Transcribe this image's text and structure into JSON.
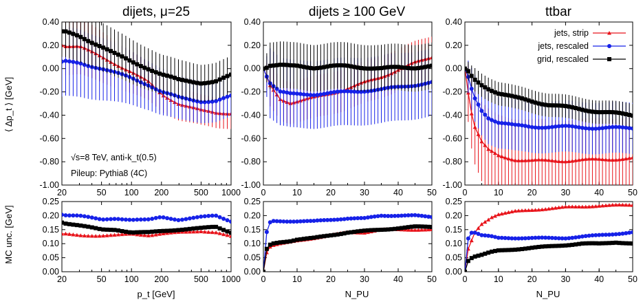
{
  "chart_data": [
    {
      "type": "line",
      "title": "dijets, μ=25",
      "xlabel": "",
      "ylabel": "⟨ Δp_t ⟩ [GeV]",
      "xscale": "log",
      "xlim": [
        20,
        1000
      ],
      "ylim": [
        -1.0,
        0.4
      ],
      "x_ticks": [
        "20",
        "50",
        "100",
        "200",
        "500",
        "1000"
      ],
      "y_ticks": [
        "0.40",
        "0.20",
        "0.00",
        "-0.20",
        "-0.40",
        "-0.60",
        "-0.80",
        "-1.00"
      ],
      "annotations": [
        "√s=8 TeV, anti-k_t(0.5)",
        "Pileup: Pythia8 (4C)"
      ],
      "series": [
        {
          "name": "jets, strip",
          "color": "#e8131a",
          "marker": "triangle",
          "error_bars": true,
          "x": [
            20,
            30,
            50,
            70,
            100,
            150,
            200,
            300,
            500,
            700,
            1000
          ],
          "y": [
            0.2,
            0.19,
            0.1,
            0.04,
            -0.03,
            -0.12,
            -0.22,
            -0.3,
            -0.36,
            -0.38,
            -0.38
          ],
          "err": [
            0.25,
            0.24,
            0.22,
            0.2,
            0.18,
            0.16,
            0.15,
            0.14,
            0.13,
            0.13,
            0.13
          ]
        },
        {
          "name": "jets, rescaled",
          "color": "#1621e8",
          "marker": "circle",
          "error_bars": true,
          "x": [
            20,
            30,
            50,
            70,
            100,
            150,
            200,
            300,
            500,
            700,
            1000
          ],
          "y": [
            0.06,
            0.05,
            0.0,
            -0.04,
            -0.08,
            -0.14,
            -0.2,
            -0.25,
            -0.28,
            -0.28,
            -0.24
          ],
          "err": [
            0.3,
            0.29,
            0.27,
            0.25,
            0.23,
            0.21,
            0.2,
            0.19,
            0.18,
            0.18,
            0.18
          ]
        },
        {
          "name": "grid, rescaled",
          "color": "#000000",
          "marker": "square",
          "error_bars": true,
          "x": [
            20,
            30,
            50,
            70,
            100,
            150,
            200,
            300,
            500,
            700,
            1000
          ],
          "y": [
            0.32,
            0.28,
            0.19,
            0.12,
            0.06,
            0.0,
            -0.05,
            -0.1,
            -0.12,
            -0.11,
            -0.06
          ],
          "err": [
            0.22,
            0.22,
            0.21,
            0.2,
            0.19,
            0.18,
            0.17,
            0.17,
            0.16,
            0.16,
            0.16
          ]
        }
      ]
    },
    {
      "type": "line",
      "title": "dijets ≥ 100 GeV",
      "xlabel": "",
      "ylabel": "",
      "xlim": [
        0,
        50
      ],
      "ylim": [
        -1.0,
        0.4
      ],
      "x_ticks": [
        "0",
        "10",
        "20",
        "30",
        "40",
        "50"
      ],
      "y_ticks": [
        "0.40",
        "0.20",
        "0.00",
        "-0.20",
        "-0.40",
        "-0.60",
        "-0.80",
        "-1.00"
      ],
      "series": [
        {
          "name": "jets, strip",
          "color": "#e8131a",
          "marker": "triangle",
          "error_bars": true,
          "x": [
            0,
            2,
            5,
            8,
            10,
            15,
            20,
            25,
            30,
            35,
            40,
            45,
            50
          ],
          "y": [
            0.0,
            -0.15,
            -0.26,
            -0.29,
            -0.28,
            -0.25,
            -0.21,
            -0.17,
            -0.12,
            -0.07,
            -0.01,
            0.05,
            0.1
          ],
          "err": [
            0.05,
            0.18,
            0.18,
            0.18,
            0.18,
            0.18,
            0.18,
            0.18,
            0.18,
            0.18,
            0.18,
            0.18,
            0.18
          ]
        },
        {
          "name": "jets, rescaled",
          "color": "#1621e8",
          "marker": "circle",
          "error_bars": true,
          "x": [
            0,
            2,
            5,
            8,
            10,
            15,
            20,
            25,
            30,
            35,
            40,
            45,
            50
          ],
          "y": [
            0.0,
            -0.12,
            -0.2,
            -0.22,
            -0.22,
            -0.22,
            -0.21,
            -0.2,
            -0.19,
            -0.18,
            -0.16,
            -0.14,
            -0.12
          ],
          "err": [
            0.05,
            0.3,
            0.29,
            0.29,
            0.29,
            0.29,
            0.29,
            0.29,
            0.29,
            0.29,
            0.29,
            0.29,
            0.29
          ]
        },
        {
          "name": "grid, rescaled",
          "color": "#000000",
          "marker": "square",
          "error_bars": true,
          "x": [
            0,
            2,
            5,
            8,
            10,
            15,
            20,
            25,
            30,
            35,
            40,
            45,
            50
          ],
          "y": [
            0.0,
            0.03,
            0.03,
            0.02,
            0.02,
            0.01,
            0.02,
            0.02,
            0.01,
            0.0,
            0.01,
            0.01,
            0.02
          ],
          "err": [
            0.05,
            0.2,
            0.2,
            0.2,
            0.2,
            0.2,
            0.2,
            0.2,
            0.2,
            0.2,
            0.2,
            0.2,
            0.2
          ]
        }
      ]
    },
    {
      "type": "line",
      "title": "ttbar",
      "xlabel": "",
      "ylabel": "",
      "xlim": [
        0,
        50
      ],
      "ylim": [
        -1.0,
        0.4
      ],
      "x_ticks": [
        "0",
        "10",
        "20",
        "30",
        "40",
        "50"
      ],
      "y_ticks": [
        "0.40",
        "0.20",
        "0.00",
        "-0.20",
        "-0.40",
        "-0.60",
        "-0.80",
        "-1.00"
      ],
      "legend": "top-right",
      "series": [
        {
          "name": "jets, strip",
          "color": "#e8131a",
          "marker": "triangle",
          "error_bars": true,
          "x": [
            0,
            1,
            2,
            3,
            5,
            7,
            10,
            15,
            20,
            25,
            30,
            40,
            50
          ],
          "y": [
            0.0,
            -0.2,
            -0.38,
            -0.5,
            -0.63,
            -0.7,
            -0.75,
            -0.78,
            -0.79,
            -0.79,
            -0.79,
            -0.78,
            -0.77
          ],
          "err": [
            0.05,
            0.25,
            0.3,
            0.32,
            0.34,
            0.35,
            0.35,
            0.35,
            0.35,
            0.35,
            0.35,
            0.35,
            0.35
          ]
        },
        {
          "name": "jets, rescaled",
          "color": "#1621e8",
          "marker": "circle",
          "error_bars": true,
          "x": [
            0,
            1,
            2,
            3,
            5,
            7,
            10,
            15,
            20,
            25,
            30,
            40,
            50
          ],
          "y": [
            0.0,
            -0.08,
            -0.18,
            -0.26,
            -0.36,
            -0.42,
            -0.46,
            -0.49,
            -0.5,
            -0.5,
            -0.5,
            -0.51,
            -0.51
          ],
          "err": [
            0.05,
            0.14,
            0.18,
            0.2,
            0.21,
            0.22,
            0.22,
            0.22,
            0.22,
            0.22,
            0.22,
            0.22,
            0.22
          ]
        },
        {
          "name": "grid, rescaled",
          "color": "#000000",
          "marker": "square",
          "error_bars": true,
          "x": [
            0,
            1,
            2,
            3,
            5,
            7,
            10,
            15,
            20,
            25,
            30,
            40,
            50
          ],
          "y": [
            0.0,
            -0.03,
            -0.07,
            -0.1,
            -0.14,
            -0.17,
            -0.21,
            -0.25,
            -0.28,
            -0.31,
            -0.33,
            -0.37,
            -0.4
          ],
          "err": [
            0.05,
            0.08,
            0.09,
            0.1,
            0.1,
            0.1,
            0.1,
            0.1,
            0.1,
            0.1,
            0.1,
            0.1,
            0.1
          ]
        }
      ]
    },
    {
      "type": "line",
      "title": "",
      "xlabel": "p_t [GeV]",
      "ylabel": "MC unc. [GeV]",
      "xscale": "log",
      "xlim": [
        20,
        1000
      ],
      "ylim": [
        0.0,
        0.25
      ],
      "x_ticks": [
        "20",
        "50",
        "100",
        "200",
        "500",
        "1000"
      ],
      "y_ticks": [
        "0.25",
        "0.20",
        "0.15",
        "0.10",
        "0.05",
        "0.00"
      ],
      "series": [
        {
          "name": "jets, strip",
          "color": "#e8131a",
          "marker": "triangle",
          "x": [
            20,
            30,
            50,
            70,
            100,
            150,
            200,
            300,
            500,
            700,
            1000
          ],
          "y": [
            0.135,
            0.13,
            0.128,
            0.13,
            0.135,
            0.13,
            0.135,
            0.14,
            0.145,
            0.14,
            0.125
          ]
        },
        {
          "name": "jets, rescaled",
          "color": "#1621e8",
          "marker": "circle",
          "x": [
            20,
            30,
            50,
            70,
            100,
            150,
            200,
            300,
            500,
            700,
            1000
          ],
          "y": [
            0.203,
            0.2,
            0.185,
            0.19,
            0.185,
            0.185,
            0.195,
            0.185,
            0.195,
            0.2,
            0.18
          ]
        },
        {
          "name": "grid, rescaled",
          "color": "#000000",
          "marker": "square",
          "x": [
            20,
            30,
            50,
            70,
            100,
            150,
            200,
            300,
            500,
            700,
            1000
          ],
          "y": [
            0.175,
            0.165,
            0.15,
            0.15,
            0.14,
            0.14,
            0.145,
            0.15,
            0.155,
            0.16,
            0.14
          ]
        }
      ]
    },
    {
      "type": "line",
      "title": "",
      "xlabel": "N_PU",
      "ylabel": "",
      "xlim": [
        0,
        50
      ],
      "ylim": [
        0.0,
        0.25
      ],
      "x_ticks": [
        "0",
        "10",
        "20",
        "30",
        "40",
        "50"
      ],
      "y_ticks": [
        "0.25",
        "0.20",
        "0.15",
        "0.10",
        "0.05",
        "0.00"
      ],
      "series": [
        {
          "name": "jets, strip",
          "color": "#e8131a",
          "marker": "triangle",
          "x": [
            0,
            1,
            2,
            3,
            5,
            8,
            10,
            15,
            20,
            25,
            30,
            35,
            40,
            45,
            50
          ],
          "y": [
            0.0,
            0.07,
            0.09,
            0.095,
            0.1,
            0.105,
            0.11,
            0.12,
            0.13,
            0.14,
            0.14,
            0.15,
            0.15,
            0.15,
            0.15
          ]
        },
        {
          "name": "jets, rescaled",
          "color": "#1621e8",
          "marker": "circle",
          "x": [
            0,
            1,
            2,
            3,
            5,
            8,
            10,
            15,
            20,
            25,
            30,
            35,
            40,
            45,
            50
          ],
          "y": [
            0.0,
            0.14,
            0.175,
            0.18,
            0.18,
            0.18,
            0.18,
            0.18,
            0.185,
            0.19,
            0.19,
            0.2,
            0.2,
            0.2,
            0.195
          ]
        },
        {
          "name": "grid, rescaled",
          "color": "#000000",
          "marker": "square",
          "x": [
            0,
            1,
            2,
            3,
            5,
            8,
            10,
            15,
            20,
            25,
            30,
            35,
            40,
            45,
            50
          ],
          "y": [
            0.0,
            0.08,
            0.095,
            0.1,
            0.105,
            0.11,
            0.115,
            0.12,
            0.13,
            0.14,
            0.145,
            0.15,
            0.155,
            0.16,
            0.16
          ]
        }
      ]
    },
    {
      "type": "line",
      "title": "",
      "xlabel": "N_PU",
      "ylabel": "",
      "xlim": [
        0,
        50
      ],
      "ylim": [
        0.0,
        0.25
      ],
      "x_ticks": [
        "0",
        "10",
        "20",
        "30",
        "40",
        "50"
      ],
      "y_ticks": [
        "0.25",
        "0.20",
        "0.15",
        "0.10",
        "0.05",
        "0.00"
      ],
      "series": [
        {
          "name": "jets, strip",
          "color": "#e8131a",
          "marker": "triangle",
          "x": [
            0,
            1,
            2,
            3,
            5,
            8,
            10,
            15,
            20,
            25,
            30,
            35,
            40,
            45,
            50
          ],
          "y": [
            0.0,
            0.08,
            0.11,
            0.14,
            0.17,
            0.195,
            0.205,
            0.215,
            0.22,
            0.225,
            0.23,
            0.232,
            0.235,
            0.237,
            0.238
          ]
        },
        {
          "name": "jets, rescaled",
          "color": "#1621e8",
          "marker": "circle",
          "x": [
            0,
            1,
            2,
            3,
            5,
            8,
            10,
            15,
            20,
            25,
            30,
            35,
            40,
            45,
            50
          ],
          "y": [
            0.0,
            0.12,
            0.14,
            0.14,
            0.13,
            0.125,
            0.12,
            0.12,
            0.12,
            0.12,
            0.12,
            0.125,
            0.13,
            0.135,
            0.14
          ]
        },
        {
          "name": "grid, rescaled",
          "color": "#000000",
          "marker": "square",
          "x": [
            0,
            1,
            2,
            3,
            5,
            8,
            10,
            15,
            20,
            25,
            30,
            35,
            40,
            45,
            50
          ],
          "y": [
            0.0,
            0.04,
            0.05,
            0.055,
            0.06,
            0.07,
            0.075,
            0.08,
            0.085,
            0.09,
            0.095,
            0.1,
            0.1,
            0.105,
            0.1
          ]
        }
      ]
    }
  ]
}
